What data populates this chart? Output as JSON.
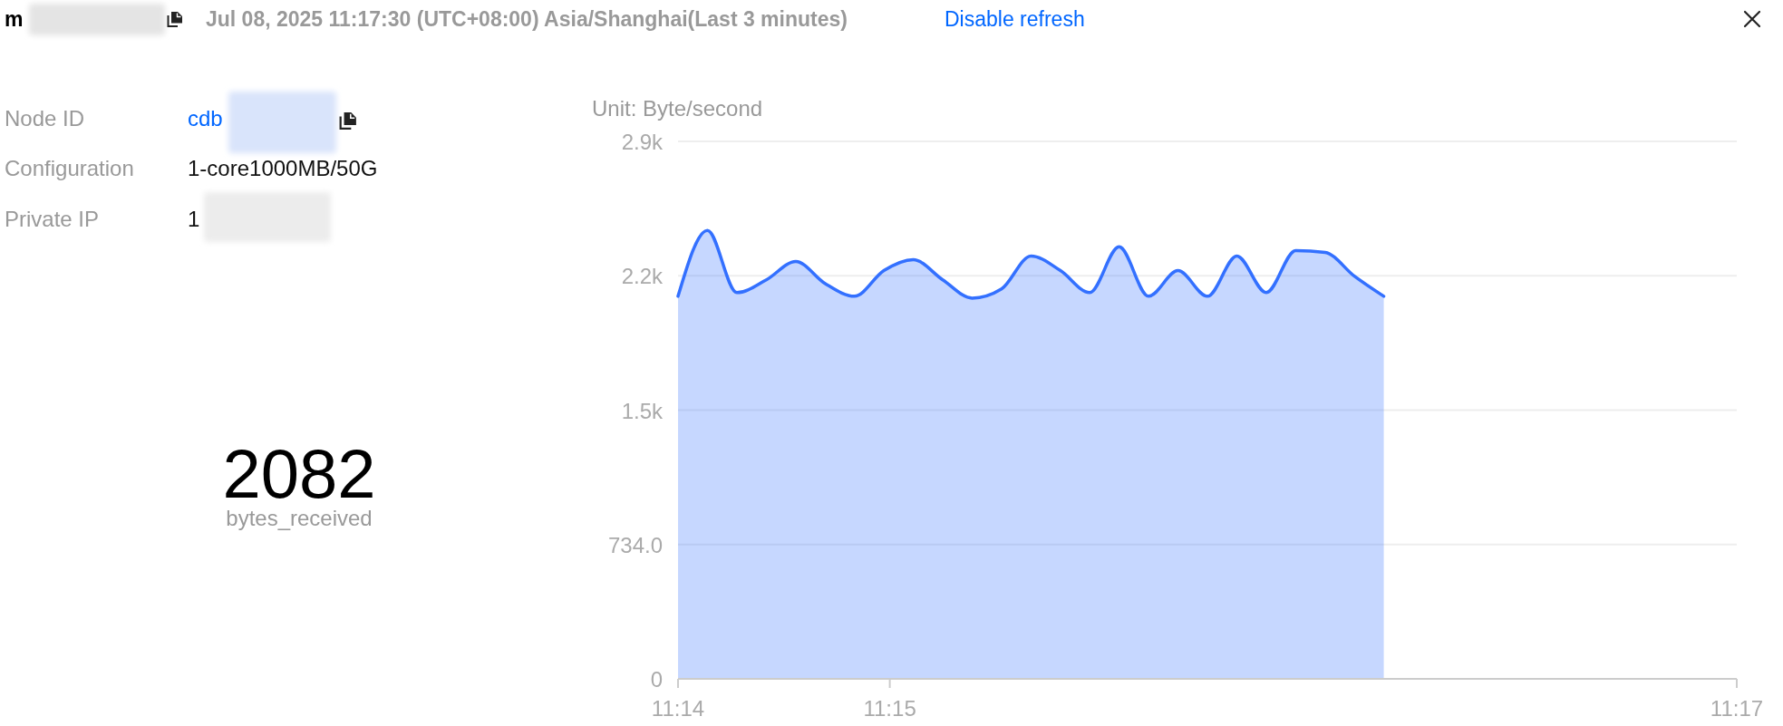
{
  "chart_data": [
    {
      "type": "other",
      "title": "m",
      "subtitle": "Jul 08, 2025 11:17:30 (UTC+08:00) Asia/Shanghai(Last 3 minutes)",
      "annotations": [
        "Disable refresh",
        "Node ID",
        "cdb",
        "Configuration",
        "1-core1000MB/50G",
        "Private IP",
        "1",
        "2082",
        "bytes_received"
      ]
    },
    {
      "type": "area",
      "ylabel": "Unit: Byte/second",
      "x": [
        11.24,
        11.24139,
        11.24278,
        11.24417,
        11.24556,
        11.24694,
        11.24833,
        11.24972,
        11.25111,
        11.2525,
        11.25389,
        11.25528,
        11.25667,
        11.25806,
        11.25944,
        11.26083,
        11.26222,
        11.26361,
        11.265,
        11.26639,
        11.26778,
        11.26917,
        11.27056,
        11.27194,
        11.27333
      ],
      "series": [
        {
          "color": "#3370ff",
          "values": [
            2090,
            2450,
            2110,
            2180,
            2280,
            2160,
            2090,
            2230,
            2290,
            2180,
            2080,
            2130,
            2310,
            2230,
            2110,
            2360,
            2090,
            2230,
            2090,
            2310,
            2110,
            2340,
            2330,
            2200,
            2090
          ]
        }
      ],
      "xlim": [
        11.24,
        11.29
      ],
      "xticks": [
        {
          "value": 11.24,
          "label": "11:14"
        },
        {
          "value": 11.25,
          "label": "11:15"
        },
        {
          "value": 11.29,
          "label": "11:17"
        }
      ],
      "ylim": [
        0,
        2936
      ],
      "yticks": [
        0,
        {
          "value": 734,
          "label": "734.0"
        },
        {
          "value": 1468,
          "label": "1.5k"
        },
        {
          "value": 2202,
          "label": "2.2k"
        },
        {
          "value": 2936,
          "label": "2.9k"
        }
      ],
      "grid": "y"
    }
  ]
}
